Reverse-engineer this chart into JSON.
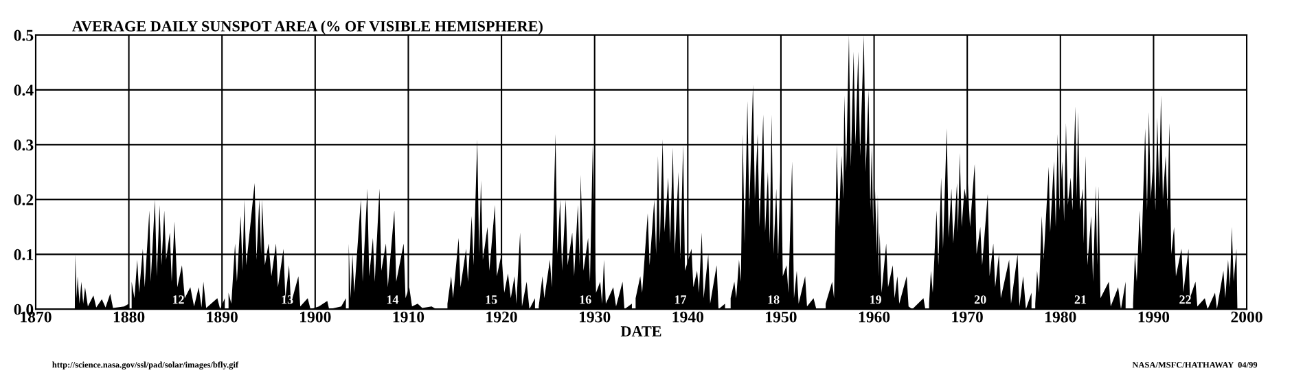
{
  "chart_data": {
    "type": "area",
    "title": "AVERAGE DAILY SUNSPOT AREA (% OF VISIBLE HEMISPHERE)",
    "xlabel": "DATE",
    "series": [
      {
        "color": "#000000",
        "x": [
          1874.2,
          1874.25,
          1874.4,
          1874.5,
          1874.7,
          1874.9,
          1875.1,
          1875.3,
          1875.6,
          1876.2,
          1876.5,
          1877.1,
          1877.5,
          1878.0,
          1878.3,
          1879.5,
          1880.0
        ],
        "values": [
          0,
          0.1,
          0.02,
          0.06,
          0.01,
          0.05,
          0.01,
          0.04,
          0.005,
          0.025,
          0.003,
          0.018,
          0.003,
          0.028,
          0.002,
          0.005,
          0.01
        ]
      },
      {
        "color": "#000000",
        "x": [
          1880.3,
          1880.6,
          1880.9,
          1881.1,
          1881.5,
          1881.7,
          1882.2,
          1882.35,
          1882.8,
          1883.0,
          1883.3,
          1883.5,
          1883.8,
          1884.0,
          1884.4,
          1884.6,
          1884.9,
          1885.2,
          1885.7,
          1886.0,
          1886.6,
          1887.0,
          1887.5,
          1887.8,
          1888.0,
          1888.3,
          1889.5,
          1889.8,
          1890.3
        ],
        "values": [
          0.05,
          0.02,
          0.09,
          0.03,
          0.11,
          0.04,
          0.18,
          0.05,
          0.2,
          0.06,
          0.19,
          0.08,
          0.18,
          0.09,
          0.14,
          0.05,
          0.16,
          0.04,
          0.08,
          0.02,
          0.04,
          0.005,
          0.04,
          0.003,
          0.05,
          0.002,
          0.02,
          0,
          0.02
        ]
      },
      {
        "color": "#000000",
        "x": [
          1890.7,
          1891.0,
          1891.4,
          1891.6,
          1892.0,
          1892.2,
          1892.4,
          1892.6,
          1893.5,
          1893.7,
          1894.0,
          1894.2,
          1894.3,
          1894.6,
          1895.0,
          1895.3,
          1895.8,
          1896.0,
          1896.6,
          1896.8,
          1897.2,
          1897.4,
          1898.2,
          1898.4,
          1899.2,
          1899.5,
          1900.4,
          1901.3,
          1901.5,
          1902.8,
          1903.3
        ],
        "values": [
          0.03,
          0.01,
          0.12,
          0.05,
          0.17,
          0.07,
          0.2,
          0.08,
          0.23,
          0.09,
          0.2,
          0.1,
          0.2,
          0.08,
          0.12,
          0.06,
          0.12,
          0.04,
          0.11,
          0.02,
          0.08,
          0.01,
          0.06,
          0.005,
          0.02,
          0,
          0.005,
          0.015,
          0,
          0.005,
          0.02
        ]
      },
      {
        "color": "#000000",
        "x": [
          1903.6,
          1903.8,
          1904.0,
          1904.2,
          1904.9,
          1905.1,
          1905.6,
          1905.8,
          1906.2,
          1906.4,
          1906.9,
          1907.1,
          1907.6,
          1907.8,
          1908.5,
          1908.7,
          1909.5,
          1909.7,
          1910.1,
          1910.4,
          1911.0,
          1911.5,
          1912.5,
          1913.0
        ],
        "values": [
          0.12,
          0.02,
          0.1,
          0.03,
          0.2,
          0.05,
          0.22,
          0.06,
          0.13,
          0.05,
          0.22,
          0.07,
          0.12,
          0.04,
          0.18,
          0.05,
          0.12,
          0.02,
          0.04,
          0.005,
          0.01,
          0.002,
          0.005,
          0
        ]
      },
      {
        "color": "#000000",
        "x": [
          1914.2,
          1914.6,
          1914.8,
          1915.4,
          1915.6,
          1916.2,
          1916.4,
          1916.8,
          1917.0,
          1917.4,
          1917.6,
          1917.8,
          1918.0,
          1918.5,
          1918.7,
          1919.3,
          1919.5,
          1920.0,
          1920.3,
          1920.7,
          1921.0,
          1921.4,
          1921.6,
          1922.0,
          1922.2,
          1922.7,
          1923.0,
          1923.6
        ],
        "values": [
          0.01,
          0.06,
          0.02,
          0.13,
          0.04,
          0.11,
          0.05,
          0.17,
          0.08,
          0.31,
          0.1,
          0.235,
          0.09,
          0.15,
          0.07,
          0.19,
          0.06,
          0.1,
          0.03,
          0.065,
          0.02,
          0.06,
          0.01,
          0.14,
          0.005,
          0.05,
          0,
          0.02
        ]
      },
      {
        "color": "#000000",
        "x": [
          1924.0,
          1924.4,
          1924.6,
          1925.2,
          1925.4,
          1925.8,
          1926.0,
          1926.3,
          1926.5,
          1926.9,
          1927.1,
          1927.6,
          1927.8,
          1928.2,
          1928.4,
          1928.5,
          1928.8,
          1929.3,
          1929.5,
          1929.8,
          1930.15,
          1930.6,
          1930.8,
          1931.0,
          1931.2,
          1932.0,
          1932.3,
          1933.0,
          1933.2,
          1934.0
        ],
        "values": [
          0.005,
          0.06,
          0.02,
          0.09,
          0.04,
          0.32,
          0.1,
          0.2,
          0.07,
          0.2,
          0.08,
          0.14,
          0.06,
          0.19,
          0.08,
          0.245,
          0.07,
          0.13,
          0.05,
          0.3,
          0.03,
          0.05,
          0.01,
          0.09,
          0.01,
          0.04,
          0.005,
          0.05,
          0,
          0.01
        ]
      },
      {
        "color": "#000000",
        "x": [
          1934.4,
          1934.9,
          1935.1,
          1935.7,
          1935.9,
          1936.4,
          1936.6,
          1936.8,
          1937.0,
          1937.3,
          1937.5,
          1937.9,
          1938.1,
          1938.4,
          1938.6,
          1939.0,
          1939.2,
          1939.5,
          1939.7,
          1940.4,
          1940.6,
          1941.0,
          1941.2,
          1941.5,
          1941.7,
          1942.2,
          1942.4,
          1943.1,
          1943.3,
          1944.0
        ],
        "values": [
          0.02,
          0.06,
          0.03,
          0.175,
          0.08,
          0.2,
          0.1,
          0.28,
          0.12,
          0.31,
          0.14,
          0.24,
          0.12,
          0.295,
          0.1,
          0.25,
          0.09,
          0.3,
          0.07,
          0.11,
          0.04,
          0.07,
          0.03,
          0.14,
          0.02,
          0.1,
          0.01,
          0.08,
          0,
          0.01
        ]
      },
      {
        "color": "#000000",
        "x": [
          1944.6,
          1945.0,
          1945.2,
          1945.5,
          1945.7,
          1945.9,
          1946.1,
          1946.4,
          1946.6,
          1947.0,
          1947.2,
          1947.5,
          1947.7,
          1948.1,
          1948.3,
          1948.6,
          1948.8,
          1949.0,
          1949.2,
          1949.5,
          1949.7,
          1950.0,
          1950.2,
          1950.6,
          1950.8,
          1951.2,
          1951.4,
          1951.7,
          1951.9,
          1952.6,
          1952.8,
          1953.5,
          1953.8
        ],
        "values": [
          0.02,
          0.05,
          0.02,
          0.09,
          0.05,
          0.32,
          0.12,
          0.38,
          0.18,
          0.41,
          0.2,
          0.32,
          0.15,
          0.355,
          0.14,
          0.25,
          0.12,
          0.355,
          0.1,
          0.22,
          0.09,
          0.3,
          0.06,
          0.08,
          0.03,
          0.27,
          0.02,
          0.07,
          0.01,
          0.06,
          0.005,
          0.02,
          0
        ]
      },
      {
        "color": "#000000",
        "x": [
          1954.8,
          1955.5,
          1955.7,
          1956.0,
          1956.2,
          1956.5,
          1956.7,
          1956.8,
          1957.0,
          1957.3,
          1957.5,
          1957.8,
          1958.0,
          1958.3,
          1958.5,
          1958.9,
          1959.1,
          1959.4,
          1959.6,
          1959.75,
          1959.9,
          1960.1,
          1960.3,
          1960.4,
          1960.5,
          1960.6,
          1960.8,
          1961.3,
          1961.5,
          1962.0,
          1962.2,
          1962.5,
          1962.7,
          1963.5,
          1963.7,
          1964.1,
          1965.3,
          1965.5
        ],
        "values": [
          0.01,
          0.05,
          0.02,
          0.3,
          0.15,
          0.28,
          0.2,
          0.39,
          0.25,
          0.5,
          0.26,
          0.47,
          0.3,
          0.47,
          0.28,
          0.5,
          0.25,
          0.4,
          0.18,
          0.3,
          0.15,
          0.22,
          0.1,
          0.21,
          0.06,
          0.14,
          0.03,
          0.12,
          0.04,
          0.08,
          0.02,
          0.06,
          0.01,
          0.06,
          0.005,
          0,
          0.02,
          0
        ]
      },
      {
        "color": "#000000",
        "x": [
          1965.9,
          1966.1,
          1966.3,
          1966.7,
          1966.9,
          1967.2,
          1967.4,
          1967.8,
          1968.0,
          1968.3,
          1968.5,
          1968.9,
          1969.0,
          1969.2,
          1969.4,
          1969.7,
          1969.9,
          1970.0,
          1970.3,
          1970.8,
          1971.0,
          1971.4,
          1971.6,
          1972.2,
          1972.4,
          1972.8,
          1973.0,
          1973.4,
          1973.6,
          1974.5,
          1974.7,
          1975.4,
          1975.6,
          1976.0,
          1976.3,
          1976.9
        ],
        "values": [
          0.01,
          0.07,
          0.03,
          0.18,
          0.08,
          0.24,
          0.11,
          0.33,
          0.13,
          0.22,
          0.12,
          0.23,
          0.14,
          0.285,
          0.15,
          0.22,
          0.2,
          0.25,
          0.15,
          0.265,
          0.1,
          0.15,
          0.08,
          0.21,
          0.06,
          0.12,
          0.04,
          0.1,
          0.02,
          0.09,
          0.01,
          0.1,
          0.005,
          0.06,
          0,
          0.03
        ]
      },
      {
        "color": "#000000",
        "x": [
          1977.3,
          1977.5,
          1977.7,
          1978.0,
          1978.2,
          1978.75,
          1978.9,
          1979.3,
          1979.5,
          1979.7,
          1979.9,
          1980.2,
          1980.4,
          1980.6,
          1980.8,
          1981.1,
          1981.3,
          1981.6,
          1981.75,
          1981.9,
          1982.1,
          1982.4,
          1982.5,
          1982.7,
          1982.9,
          1983.3,
          1983.5,
          1983.8,
          1983.95,
          1984.1,
          1984.3,
          1985.2,
          1985.4,
          1986.2,
          1986.5,
          1987.0
        ],
        "values": [
          0.01,
          0.07,
          0.03,
          0.17,
          0.09,
          0.26,
          0.14,
          0.27,
          0.15,
          0.32,
          0.18,
          0.27,
          0.16,
          0.34,
          0.19,
          0.24,
          0.18,
          0.37,
          0.2,
          0.36,
          0.18,
          0.22,
          0.12,
          0.28,
          0.08,
          0.17,
          0.05,
          0.225,
          0.08,
          0.225,
          0.02,
          0.05,
          0.005,
          0.04,
          0,
          0.05
        ]
      },
      {
        "color": "#000000",
        "x": [
          1987.8,
          1988.0,
          1988.2,
          1988.5,
          1988.7,
          1989.1,
          1989.3,
          1989.5,
          1989.7,
          1990.0,
          1990.2,
          1990.4,
          1990.6,
          1990.8,
          1991.0,
          1991.3,
          1991.5,
          1991.7,
          1991.9,
          1992.2,
          1992.4,
          1993.0,
          1993.2,
          1993.75,
          1993.9,
          1994.5,
          1994.7,
          1995.5,
          1995.8,
          1996.6,
          1996.8,
          1997.5,
          1997.7,
          1998.0,
          1998.2,
          1998.4,
          1998.6,
          1998.9,
          1999.0
        ],
        "values": [
          0.01,
          0.1,
          0.05,
          0.18,
          0.1,
          0.33,
          0.18,
          0.36,
          0.2,
          0.28,
          0.18,
          0.35,
          0.22,
          0.39,
          0.2,
          0.28,
          0.18,
          0.34,
          0.1,
          0.15,
          0.06,
          0.11,
          0.03,
          0.11,
          0.02,
          0.05,
          0.005,
          0.02,
          0,
          0.03,
          0,
          0.07,
          0.02,
          0.09,
          0.04,
          0.15,
          0.05,
          0.11,
          0
        ]
      }
    ],
    "xlim": [
      1870,
      2000
    ],
    "xticks": [
      1870,
      1880,
      1890,
      1900,
      1910,
      1920,
      1930,
      1940,
      1950,
      1960,
      1970,
      1980,
      1990,
      2000
    ],
    "ylim": [
      0,
      0.5
    ],
    "yticks": [
      {
        "value": 0,
        "label": "0.0"
      },
      {
        "value": 0.1,
        "label": "0.1"
      },
      {
        "value": 0.2,
        "label": "0.2"
      },
      {
        "value": 0.3,
        "label": "0.3"
      },
      {
        "value": 0.4,
        "label": "0.4"
      },
      {
        "value": 0.5,
        "label": "0.5"
      }
    ],
    "grid": true,
    "legend": false,
    "annotations": [
      "12",
      "13",
      "14",
      "15",
      "16",
      "17",
      "18",
      "19",
      "20",
      "21",
      "22",
      "http://science.nasa.gov/ssl/pad/solar/images/bfly.gif",
      "NASA/MSFC/HATHAWAY  04/99"
    ]
  }
}
